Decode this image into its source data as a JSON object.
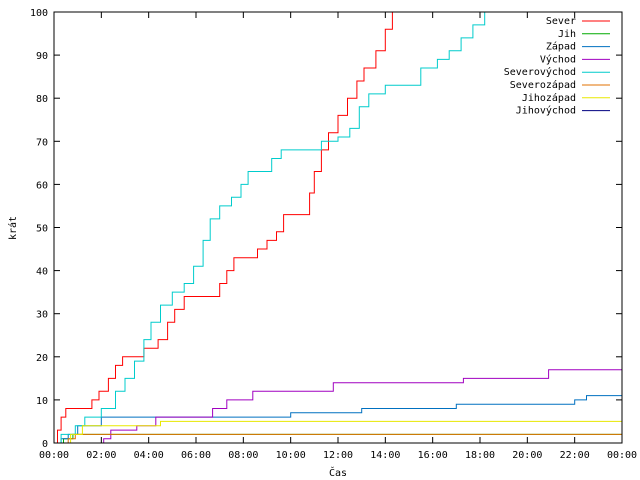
{
  "chart_data": {
    "type": "line",
    "title": "",
    "xlabel": "Čas",
    "ylabel": "krát",
    "xlim": [
      0,
      24
    ],
    "ylim": [
      0,
      100
    ],
    "x_ticks": [
      "00:00",
      "02:00",
      "04:00",
      "06:00",
      "08:00",
      "10:00",
      "12:00",
      "14:00",
      "16:00",
      "18:00",
      "20:00",
      "22:00",
      "00:00"
    ],
    "y_ticks": [
      "0",
      "10",
      "20",
      "30",
      "40",
      "50",
      "60",
      "70",
      "80",
      "90",
      "100"
    ],
    "legend_position": "top-right",
    "grid": false,
    "series": [
      {
        "name": "Sever",
        "color": "#ff0000",
        "step": true,
        "points": [
          [
            0,
            0
          ],
          [
            0.15,
            3
          ],
          [
            0.3,
            6
          ],
          [
            0.5,
            8
          ],
          [
            1.5,
            8
          ],
          [
            1.6,
            10
          ],
          [
            1.9,
            12
          ],
          [
            2.3,
            15
          ],
          [
            2.6,
            18
          ],
          [
            2.9,
            20
          ],
          [
            3.6,
            20
          ],
          [
            3.8,
            22
          ],
          [
            4.4,
            24
          ],
          [
            4.8,
            28
          ],
          [
            5.1,
            31
          ],
          [
            5.5,
            34
          ],
          [
            6.8,
            34
          ],
          [
            7.0,
            37
          ],
          [
            7.3,
            40
          ],
          [
            7.6,
            43
          ],
          [
            8.4,
            43
          ],
          [
            8.6,
            45
          ],
          [
            9.0,
            47
          ],
          [
            9.4,
            49
          ],
          [
            9.7,
            53
          ],
          [
            10.5,
            53
          ],
          [
            10.8,
            58
          ],
          [
            11.0,
            63
          ],
          [
            11.3,
            68
          ],
          [
            11.6,
            72
          ],
          [
            12.0,
            76
          ],
          [
            12.4,
            80
          ],
          [
            12.8,
            84
          ],
          [
            13.1,
            87
          ],
          [
            13.6,
            91
          ],
          [
            14.0,
            96
          ],
          [
            14.3,
            100
          ]
        ]
      },
      {
        "name": "Jih",
        "color": "#00aa00",
        "step": true,
        "points": [
          [
            0,
            0
          ],
          [
            0.4,
            1
          ],
          [
            0.8,
            2
          ],
          [
            24,
            2
          ]
        ]
      },
      {
        "name": "Západ",
        "color": "#0070c0",
        "step": true,
        "points": [
          [
            0,
            0
          ],
          [
            0.3,
            1
          ],
          [
            0.6,
            2
          ],
          [
            1.0,
            4
          ],
          [
            2.0,
            6
          ],
          [
            4.0,
            6
          ],
          [
            10.0,
            7
          ],
          [
            13.0,
            8
          ],
          [
            16.5,
            8
          ],
          [
            17.0,
            9
          ],
          [
            22.0,
            10
          ],
          [
            22.5,
            11
          ],
          [
            24,
            11
          ]
        ]
      },
      {
        "name": "Východ",
        "color": "#a000c0",
        "step": true,
        "points": [
          [
            0,
            0
          ],
          [
            2.1,
            1
          ],
          [
            2.4,
            3
          ],
          [
            3.5,
            4
          ],
          [
            4.3,
            6
          ],
          [
            6.5,
            6
          ],
          [
            6.7,
            8
          ],
          [
            7.3,
            10
          ],
          [
            8.4,
            12
          ],
          [
            11.7,
            12
          ],
          [
            11.8,
            14
          ],
          [
            16.5,
            14
          ],
          [
            17.3,
            15
          ],
          [
            20.6,
            15
          ],
          [
            20.9,
            17
          ],
          [
            24,
            17
          ]
        ]
      },
      {
        "name": "Severovýchod",
        "color": "#00cccc",
        "step": true,
        "points": [
          [
            0,
            0
          ],
          [
            0.3,
            2
          ],
          [
            0.9,
            4
          ],
          [
            1.3,
            6
          ],
          [
            1.6,
            6
          ],
          [
            2.0,
            8
          ],
          [
            2.6,
            12
          ],
          [
            3.0,
            15
          ],
          [
            3.4,
            19
          ],
          [
            3.8,
            24
          ],
          [
            4.1,
            28
          ],
          [
            4.5,
            32
          ],
          [
            5.0,
            35
          ],
          [
            5.5,
            37
          ],
          [
            5.9,
            41
          ],
          [
            6.3,
            47
          ],
          [
            6.6,
            52
          ],
          [
            7.0,
            55
          ],
          [
            7.5,
            57
          ],
          [
            7.9,
            60
          ],
          [
            8.2,
            63
          ],
          [
            9.0,
            63
          ],
          [
            9.2,
            66
          ],
          [
            9.6,
            68
          ],
          [
            11.1,
            68
          ],
          [
            11.3,
            70
          ],
          [
            12.0,
            71
          ],
          [
            12.5,
            73
          ],
          [
            12.9,
            78
          ],
          [
            13.3,
            81
          ],
          [
            14.0,
            83
          ],
          [
            15.2,
            83
          ],
          [
            15.5,
            87
          ],
          [
            16.2,
            89
          ],
          [
            16.7,
            91
          ],
          [
            17.2,
            94
          ],
          [
            17.7,
            97
          ],
          [
            18.2,
            100
          ]
        ]
      },
      {
        "name": "Severozápad",
        "color": "#e07000",
        "step": true,
        "points": [
          [
            0,
            0
          ],
          [
            0.6,
            1
          ],
          [
            0.9,
            2
          ],
          [
            24,
            2
          ]
        ]
      },
      {
        "name": "Jihozápad",
        "color": "#e8e800",
        "step": true,
        "points": [
          [
            0,
            0
          ],
          [
            0.7,
            2
          ],
          [
            1.2,
            4
          ],
          [
            4.5,
            5
          ],
          [
            24,
            5
          ]
        ]
      },
      {
        "name": "Jihovýchod",
        "color": "#000080",
        "step": true,
        "points": [
          [
            0,
            0
          ],
          [
            24,
            0
          ]
        ]
      }
    ]
  }
}
